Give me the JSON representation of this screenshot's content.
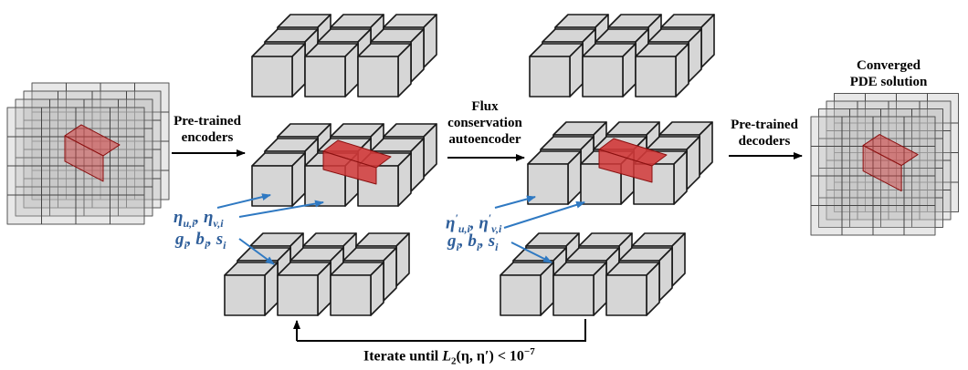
{
  "labels": {
    "encoders": [
      "Pre-trained",
      "encoders"
    ],
    "flux": [
      "Flux",
      "conservation",
      "autoencoder"
    ],
    "decoders": [
      "Pre-trained",
      "decoders"
    ],
    "converged": [
      "Converged",
      "PDE solution"
    ]
  },
  "math": {
    "left_eta": {
      "eta": "η",
      "u_sub": "u,i",
      "sep": ", ",
      "v_sub": "v,i"
    },
    "right_eta": {
      "eta": "η",
      "prime": "′",
      "u_sub": "u,i",
      "sep": ", ",
      "v_sub": "v,i"
    },
    "gbs": {
      "g": "g",
      "b": "b",
      "s": "s",
      "sub": "i",
      "sep": ", "
    }
  },
  "iterate": {
    "prefix": "Iterate until ",
    "L": "L",
    "L_sub": "2",
    "args": "(η, η′)",
    "lt": " < 10",
    "exp": "−7"
  },
  "colors": {
    "cube_fill": "#d6d6d6",
    "cube_stroke": "#1a1a1a",
    "red": "#d23a3a",
    "blue_text": "#2e5e9a",
    "arrow_blue": "#2f79c2"
  }
}
